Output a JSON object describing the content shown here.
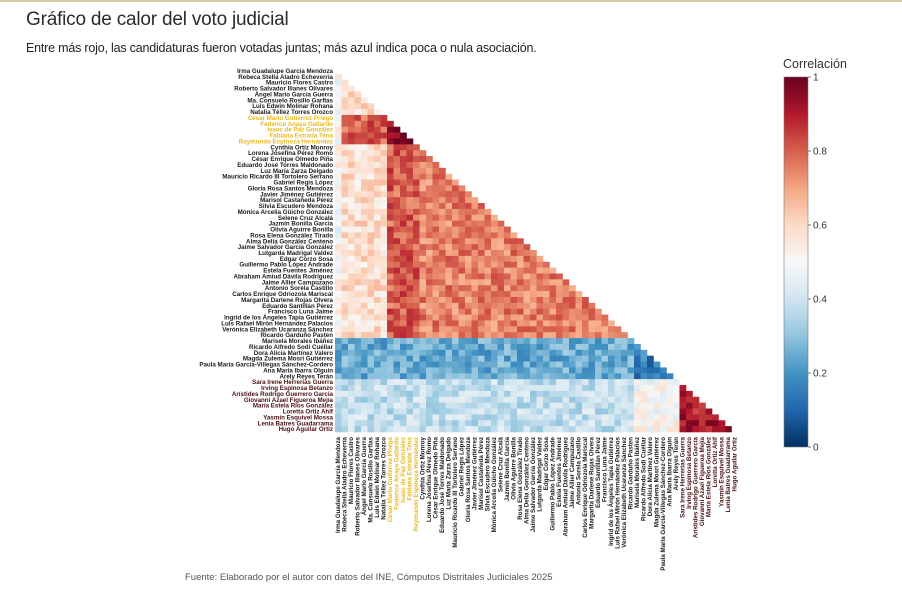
{
  "header": {
    "title": "Gráfico de calor del voto judicial",
    "subtitle": "Entre más rojo, las candidaturas fueron votadas juntas; más azul indica poca o nula asociación."
  },
  "footer": {
    "source": "Fuente: Elaborado por el autor con datos del INE, Cómputos Distritales Judiciales 2025"
  },
  "colors": {
    "accent_bar": "#d9cba6",
    "label_default": "#1a1a1a",
    "label_highlight": "#e8b923",
    "label_group3": "#4a1010",
    "scale": [
      "#053061",
      "#2166ac",
      "#4393c3",
      "#92c5de",
      "#d1e5f0",
      "#f7f7f7",
      "#fddbc7",
      "#f4a582",
      "#d6604d",
      "#b2182b",
      "#67001f"
    ]
  },
  "chart_data": {
    "type": "heatmap",
    "title": "Gráfico de calor del voto judicial",
    "subtitle": "Entre más rojo, las candidaturas fueron votadas juntas; más azul indica poca o nula asociación.",
    "shape": "lower-triangular correlation matrix",
    "colorbar": {
      "title": "Correlación",
      "range": [
        0,
        1
      ],
      "ticks": [
        "0",
        "0.2",
        "0.4",
        "0.6",
        "0.8",
        "1"
      ]
    },
    "candidates": [
      {
        "name": "Irma Guadalupe García Mendoza",
        "group": "A"
      },
      {
        "name": "Rebeca Stella Aladro Echeverría",
        "group": "A"
      },
      {
        "name": "Mauricio Flores Castro",
        "group": "A"
      },
      {
        "name": "Roberto Salvador Illanes Olivares",
        "group": "A"
      },
      {
        "name": "Ángel Mario García Guerra",
        "group": "A"
      },
      {
        "name": "Ma. Consuelo Rosillo Garfias",
        "group": "A"
      },
      {
        "name": "Luis Edwin Molinar Rohana",
        "group": "A"
      },
      {
        "name": "Natalia Téllez Torres Orozco",
        "group": "A"
      },
      {
        "name": "César Mario Gutiérrez Priego",
        "group": "H"
      },
      {
        "name": "Federico Anaya Gallardo",
        "group": "H"
      },
      {
        "name": "Isaac de Paz González",
        "group": "H"
      },
      {
        "name": "Fabiana Estrada Tena",
        "group": "H"
      },
      {
        "name": "Raymundo Espinoza Hernández",
        "group": "H"
      },
      {
        "name": "Cynthia Ortiz Monroy",
        "group": "A"
      },
      {
        "name": "Lorena Josefina Pérez Romo",
        "group": "A"
      },
      {
        "name": "César Enrique Olmedo Piña",
        "group": "A"
      },
      {
        "name": "Eduardo José Torres Maldonado",
        "group": "A"
      },
      {
        "name": "Luz María Zarza Delgado",
        "group": "A"
      },
      {
        "name": "Mauricio Ricardo III Tortolero Serrano",
        "group": "A"
      },
      {
        "name": "Gabriel Regis López",
        "group": "A"
      },
      {
        "name": "Gloria Rosa Santos Mendoza",
        "group": "A"
      },
      {
        "name": "Javier Jiménez Gutiérrez",
        "group": "A"
      },
      {
        "name": "Marisol Castañeda Pérez",
        "group": "A"
      },
      {
        "name": "Silvia Escudero Mendoza",
        "group": "A"
      },
      {
        "name": "Mónica Arcelia Güicho González",
        "group": "A"
      },
      {
        "name": "Selene Cruz Alcalá",
        "group": "A"
      },
      {
        "name": "Jazmín Bonilla García",
        "group": "A"
      },
      {
        "name": "Olivia Aguirre Bonilla",
        "group": "A"
      },
      {
        "name": "Rosa Elena González Tirado",
        "group": "A"
      },
      {
        "name": "Alma Delia González Centeno",
        "group": "A"
      },
      {
        "name": "Jaime Salvador García González",
        "group": "A"
      },
      {
        "name": "Lutgarda Madrigal Valdez",
        "group": "A"
      },
      {
        "name": "Edgar Corzo Sosa",
        "group": "A"
      },
      {
        "name": "Guillermo Pablo López Andrade",
        "group": "A"
      },
      {
        "name": "Estela Fuentes Jiménez",
        "group": "A"
      },
      {
        "name": "Abraham Amiud Dávila Rodríguez",
        "group": "A"
      },
      {
        "name": "Jaime Allier Campuzano",
        "group": "A"
      },
      {
        "name": "Antonio Sorela Castillo",
        "group": "A"
      },
      {
        "name": "Carlos Enrique Odriozola Mariscal",
        "group": "A"
      },
      {
        "name": "Margarita Darlene Rojas Olvera",
        "group": "A"
      },
      {
        "name": "Eduardo Santillán Pérez",
        "group": "A"
      },
      {
        "name": "Francisco Luna Jaime",
        "group": "A"
      },
      {
        "name": "Ingrid de los Ángeles Tapia Gutiérrez",
        "group": "A"
      },
      {
        "name": "Luis Rafael Mirón Hernández Palacios",
        "group": "A"
      },
      {
        "name": "Verónica Elizabeth Ucaranza Sánchez",
        "group": "A"
      },
      {
        "name": "Ricardo Garduño Pasten",
        "group": "A"
      },
      {
        "name": "Marisela Morales Ibáñez",
        "group": "B"
      },
      {
        "name": "Ricardo Alfredo Sodi Cuéllar",
        "group": "B"
      },
      {
        "name": "Dora Alicia Martínez Valero",
        "group": "B"
      },
      {
        "name": "Magda Zulema Mosri Gutiérrez",
        "group": "B"
      },
      {
        "name": "Paula María García-Villegas Sánchez-Cordero",
        "group": "B"
      },
      {
        "name": "Ana María Ibarra Olguín",
        "group": "B"
      },
      {
        "name": "Arely Reyes Terán",
        "group": "B"
      },
      {
        "name": "Sara Irene Herrerías Guerra",
        "group": "C"
      },
      {
        "name": "Irving Espinosa Betanzo",
        "group": "C"
      },
      {
        "name": "Arístides Rodrigo Guerrero García",
        "group": "C"
      },
      {
        "name": "Giovanni Azael Figueroa Mejía",
        "group": "C"
      },
      {
        "name": "María Estela Ríos González",
        "group": "C"
      },
      {
        "name": "Loretta Ortiz Ahlf",
        "group": "C"
      },
      {
        "name": "Yasmín Esquivel Mossa",
        "group": "C"
      },
      {
        "name": "Lenia Batres Guadarrama",
        "group": "C"
      },
      {
        "name": "Hugo Aguilar Ortiz",
        "group": "C"
      }
    ],
    "block_correlation_estimates": {
      "A_with_A_first8": 0.58,
      "A_with_A": 0.75,
      "H_with_H": 0.95,
      "H_with_A": 0.8,
      "B_with_A": 0.25,
      "B_with_B": 0.15,
      "C_with_A": 0.38,
      "C_with_B": 0.5,
      "C_with_C": 0.9
    }
  }
}
